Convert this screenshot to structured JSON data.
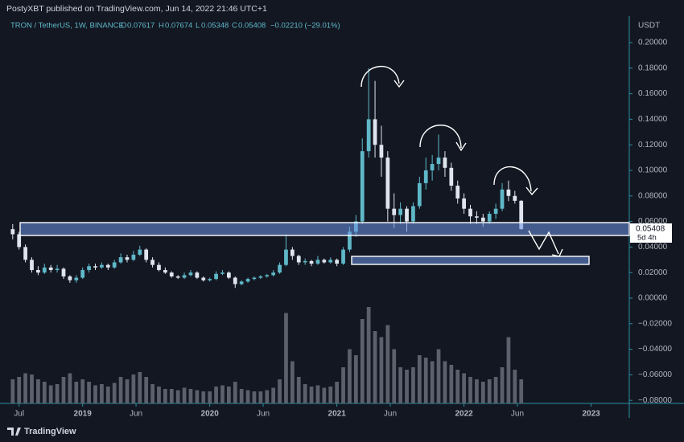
{
  "header": "PostyXBT published on TradingView.com, Jun 14, 2022 21:46 UTC+1",
  "footer_brand": "TradingView",
  "chart_data": {
    "type": "candlestick",
    "title": "TRON / TetherUS, 1W, BINANCE",
    "legend_labels": [
      "O",
      "H",
      "L",
      "C"
    ],
    "change": "−0.02210 (−29.01%)",
    "y_unit": "USDT",
    "last_price": 0.05408,
    "countdown": "5d 4h",
    "up_color": "#5fb8c8",
    "down_color": "#dfe5ee",
    "volume_color": "#5a606c",
    "x": [
      2018.45,
      2018.5,
      2018.55,
      2018.6,
      2018.65,
      2018.7,
      2018.75,
      2018.8,
      2018.85,
      2018.9,
      2018.95,
      2019,
      2019.05,
      2019.1,
      2019.15,
      2019.2,
      2019.25,
      2019.3,
      2019.35,
      2019.4,
      2019.45,
      2019.5,
      2019.55,
      2019.6,
      2019.65,
      2019.7,
      2019.75,
      2019.8,
      2019.85,
      2019.9,
      2019.95,
      2020,
      2020.05,
      2020.1,
      2020.15,
      2020.2,
      2020.25,
      2020.3,
      2020.35,
      2020.4,
      2020.45,
      2020.5,
      2020.55,
      2020.6,
      2020.65,
      2020.7,
      2020.75,
      2020.8,
      2020.85,
      2020.9,
      2020.95,
      2021,
      2021.05,
      2021.1,
      2021.15,
      2021.2,
      2021.25,
      2021.3,
      2021.35,
      2021.4,
      2021.45,
      2021.5,
      2021.55,
      2021.6,
      2021.65,
      2021.7,
      2021.75,
      2021.8,
      2021.85,
      2021.9,
      2021.95,
      2022,
      2022.05,
      2022.1,
      2022.15,
      2022.2,
      2022.25,
      2022.3,
      2022.35,
      2022.4,
      2022.45
    ],
    "open": [
      0.054,
      0.05,
      0.04,
      0.03,
      0.022,
      0.02,
      0.024,
      0.022,
      0.023,
      0.017,
      0.014,
      0.016,
      0.022,
      0.025,
      0.024,
      0.026,
      0.024,
      0.028,
      0.032,
      0.03,
      0.034,
      0.038,
      0.03,
      0.026,
      0.022,
      0.02,
      0.017,
      0.016,
      0.018,
      0.02,
      0.016,
      0.014,
      0.015,
      0.019,
      0.02,
      0.016,
      0.011,
      0.013,
      0.015,
      0.016,
      0.017,
      0.018,
      0.02,
      0.026,
      0.038,
      0.033,
      0.028,
      0.029,
      0.027,
      0.03,
      0.028,
      0.03,
      0.027,
      0.038,
      0.052,
      0.06,
      0.115,
      0.14,
      0.12,
      0.11,
      0.07,
      0.065,
      0.07,
      0.06,
      0.072,
      0.09,
      0.1,
      0.105,
      0.11,
      0.102,
      0.088,
      0.078,
      0.07,
      0.064,
      0.063,
      0.06,
      0.066,
      0.07,
      0.085,
      0.08,
      0.07617
    ],
    "high": [
      0.058,
      0.052,
      0.042,
      0.032,
      0.025,
      0.027,
      0.026,
      0.026,
      0.024,
      0.018,
      0.018,
      0.024,
      0.027,
      0.027,
      0.028,
      0.027,
      0.03,
      0.035,
      0.034,
      0.037,
      0.041,
      0.039,
      0.032,
      0.028,
      0.024,
      0.021,
      0.018,
      0.02,
      0.022,
      0.021,
      0.017,
      0.016,
      0.021,
      0.022,
      0.021,
      0.017,
      0.014,
      0.016,
      0.017,
      0.018,
      0.019,
      0.022,
      0.028,
      0.05,
      0.04,
      0.034,
      0.031,
      0.03,
      0.033,
      0.031,
      0.032,
      0.031,
      0.04,
      0.056,
      0.065,
      0.125,
      0.18,
      0.17,
      0.135,
      0.115,
      0.082,
      0.075,
      0.072,
      0.075,
      0.095,
      0.11,
      0.112,
      0.128,
      0.115,
      0.106,
      0.092,
      0.082,
      0.073,
      0.068,
      0.066,
      0.068,
      0.074,
      0.09,
      0.092,
      0.084,
      0.07674
    ],
    "low": [
      0.046,
      0.038,
      0.028,
      0.02,
      0.018,
      0.019,
      0.02,
      0.02,
      0.015,
      0.012,
      0.012,
      0.015,
      0.02,
      0.022,
      0.023,
      0.022,
      0.023,
      0.027,
      0.028,
      0.029,
      0.033,
      0.028,
      0.024,
      0.021,
      0.019,
      0.016,
      0.015,
      0.015,
      0.017,
      0.015,
      0.013,
      0.013,
      0.014,
      0.018,
      0.015,
      0.008,
      0.01,
      0.012,
      0.014,
      0.015,
      0.016,
      0.017,
      0.019,
      0.025,
      0.03,
      0.026,
      0.026,
      0.025,
      0.026,
      0.027,
      0.027,
      0.025,
      0.026,
      0.036,
      0.048,
      0.058,
      0.11,
      0.11,
      0.095,
      0.06,
      0.055,
      0.058,
      0.052,
      0.058,
      0.07,
      0.085,
      0.092,
      0.1,
      0.095,
      0.084,
      0.074,
      0.066,
      0.058,
      0.058,
      0.056,
      0.058,
      0.062,
      0.068,
      0.076,
      0.074,
      0.05348
    ],
    "close": [
      0.05,
      0.04,
      0.03,
      0.022,
      0.02,
      0.024,
      0.022,
      0.023,
      0.017,
      0.014,
      0.016,
      0.022,
      0.025,
      0.024,
      0.026,
      0.024,
      0.028,
      0.032,
      0.03,
      0.034,
      0.038,
      0.03,
      0.026,
      0.022,
      0.02,
      0.017,
      0.016,
      0.018,
      0.02,
      0.016,
      0.014,
      0.015,
      0.019,
      0.02,
      0.016,
      0.011,
      0.013,
      0.015,
      0.016,
      0.017,
      0.018,
      0.02,
      0.026,
      0.038,
      0.033,
      0.028,
      0.029,
      0.027,
      0.03,
      0.028,
      0.03,
      0.027,
      0.038,
      0.052,
      0.06,
      0.115,
      0.14,
      0.12,
      0.11,
      0.07,
      0.065,
      0.07,
      0.06,
      0.072,
      0.09,
      0.1,
      0.105,
      0.11,
      0.102,
      0.088,
      0.078,
      0.07,
      0.064,
      0.063,
      0.06,
      0.066,
      0.07,
      0.085,
      0.08,
      0.07617,
      0.05408
    ],
    "volume": [
      20,
      22,
      25,
      24,
      20,
      18,
      15,
      16,
      22,
      25,
      18,
      20,
      18,
      15,
      16,
      14,
      17,
      22,
      20,
      24,
      26,
      22,
      16,
      14,
      12,
      12,
      11,
      13,
      12,
      11,
      10,
      10,
      14,
      15,
      14,
      18,
      12,
      11,
      10,
      10,
      11,
      13,
      20,
      75,
      35,
      22,
      16,
      14,
      15,
      13,
      14,
      18,
      30,
      45,
      40,
      70,
      80,
      60,
      55,
      65,
      45,
      30,
      28,
      30,
      40,
      38,
      35,
      45,
      35,
      32,
      28,
      25,
      22,
      20,
      18,
      20,
      22,
      30,
      55,
      28,
      20
    ],
    "xlim": [
      2018.35,
      2023.3
    ],
    "xticks": [
      {
        "value": 2018.5,
        "label": "Jul"
      },
      2019,
      {
        "value": 2019.42,
        "label": "Jun"
      },
      2020,
      {
        "value": 2020.42,
        "label": "Jun"
      },
      2021,
      {
        "value": 2021.42,
        "label": "Jun"
      },
      2022,
      {
        "value": 2022.42,
        "label": "Jun"
      },
      2023
    ],
    "ylim": [
      -0.0824,
      0.2195
    ],
    "yticks": [
      {
        "value": 0.2,
        "label": "0.20000"
      },
      {
        "value": 0.18,
        "label": "0.18000"
      },
      {
        "value": 0.16,
        "label": "0.16000"
      },
      {
        "value": 0.14,
        "label": "0.14000"
      },
      {
        "value": 0.12,
        "label": "0.12000"
      },
      {
        "value": 0.1,
        "label": "0.10000"
      },
      {
        "value": 0.08,
        "label": "0.08000"
      },
      {
        "value": 0.06,
        "label": "0.06000"
      },
      {
        "value": 0.04,
        "label": "0.04000"
      },
      {
        "value": 0.02,
        "label": "0.02000"
      },
      {
        "value": 0,
        "label": "0.00000"
      },
      {
        "value": -0.02,
        "label": "−0.02000"
      },
      {
        "value": -0.04,
        "label": "−0.04000"
      },
      {
        "value": -0.06,
        "label": "−0.06000"
      },
      {
        "value": -0.08,
        "label": "−0.08000"
      }
    ]
  }
}
